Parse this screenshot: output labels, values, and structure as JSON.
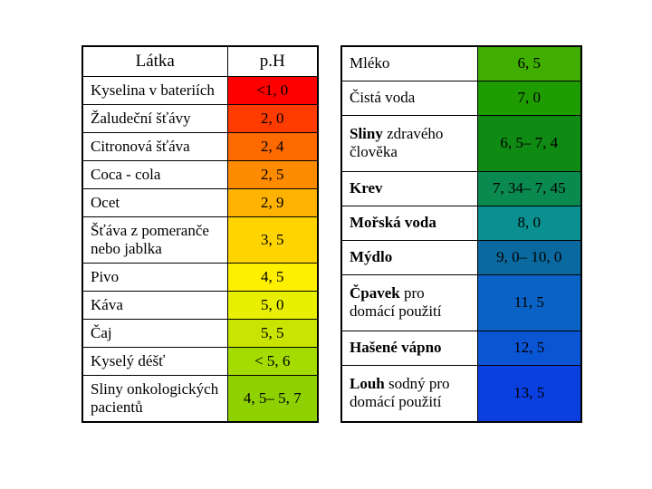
{
  "left": {
    "header": {
      "substance": "Látka",
      "ph": "p.H"
    },
    "rows": [
      {
        "name": "Kyselina v bateriích",
        "ph": "<1, 0",
        "color": "#ff0000"
      },
      {
        "name": "Žaludeční šťávy",
        "ph": "2, 0",
        "color": "#ff3b00"
      },
      {
        "name": "Citronová šťáva",
        "ph": "2, 4",
        "color": "#ff6a00"
      },
      {
        "name": "Coca - cola",
        "ph": "2, 5",
        "color": "#ff8c00"
      },
      {
        "name": "Ocet",
        "ph": "2, 9",
        "color": "#ffb300"
      },
      {
        "name": "Šťáva z pomeranče nebo jablka",
        "ph": "3, 5",
        "color": "#ffd400"
      },
      {
        "name": "Pivo",
        "ph": "4, 5",
        "color": "#fff000"
      },
      {
        "name": "Káva",
        "ph": "5, 0",
        "color": "#e8ef00"
      },
      {
        "name": "Čaj",
        "ph": "5, 5",
        "color": "#c8e400"
      },
      {
        "name": "Kyselý déšť",
        "ph": "< 5, 6",
        "color": "#a4db00"
      },
      {
        "name": "Sliny onkologických pacientů",
        "ph": "4, 5– 5, 7",
        "color": "#8fd100"
      }
    ]
  },
  "right": {
    "rows": [
      {
        "name_html": "Mléko",
        "ph": "6, 5",
        "color": "#3fae00"
      },
      {
        "name_html": "Čistá voda",
        "ph": "7, 0",
        "color": "#1f9c00"
      },
      {
        "name_html": "<b>Sliny</b> zdravého člověka",
        "ph": "6, 5– 7, 4",
        "color": "#0f8a12"
      },
      {
        "name_html": "<b>Krev</b>",
        "ph": "7, 34– 7, 45",
        "color": "#0a8a4f"
      },
      {
        "name_html": "<b>Mořská voda</b>",
        "ph": "8, 0",
        "color": "#0a9090"
      },
      {
        "name_html": "<b>Mýdlo</b>",
        "ph": "9, 0– 10, 0",
        "color": "#0a6aa0"
      },
      {
        "name_html": "<b>Čpavek</b> pro domácí použití",
        "ph": "11, 5",
        "color": "#0a63c4"
      },
      {
        "name_html": "<b>Hašené vápno</b>",
        "ph": "12, 5",
        "color": "#0a55d4"
      },
      {
        "name_html": "<b>Louh</b> sodný pro domácí použití",
        "ph": "13, 5",
        "color": "#0a3fe0"
      }
    ]
  }
}
